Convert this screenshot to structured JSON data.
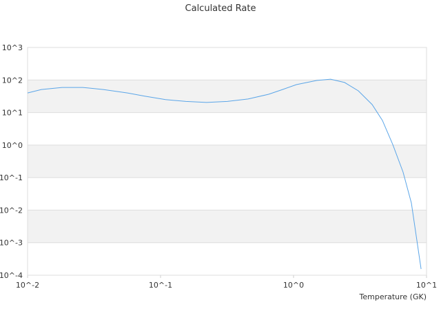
{
  "chart_data": {
    "type": "line",
    "title": "Calculated Rate",
    "x_label": "Temperature (GK)",
    "x_scale": "log",
    "y_scale": "log",
    "grid": true,
    "bands": true,
    "xlim": [
      0.01,
      10
    ],
    "ylim": [
      0.0001,
      1000
    ],
    "xticks": [
      {
        "value": 0.01,
        "label": "10^-2"
      },
      {
        "value": 0.1,
        "label": "10^-1"
      },
      {
        "value": 1,
        "label": "10^0"
      },
      {
        "value": 10,
        "label": "10^1"
      }
    ],
    "yticks": [
      {
        "value": 0.0001,
        "label": "10^-4"
      },
      {
        "value": 0.001,
        "label": "10^-3"
      },
      {
        "value": 0.01,
        "label": "10^-2"
      },
      {
        "value": 0.1,
        "label": "10^-1"
      },
      {
        "value": 1,
        "label": "10^0"
      },
      {
        "value": 10,
        "label": "10^1"
      },
      {
        "value": 100,
        "label": "10^2"
      },
      {
        "value": 1000,
        "label": "10^3"
      }
    ],
    "x": [
      0.01,
      0.0127,
      0.0182,
      0.026,
      0.0371,
      0.0564,
      0.076,
      0.109,
      0.155,
      0.222,
      0.318,
      0.455,
      0.65,
      0.826,
      1.05,
      1.5,
      1.9,
      2.42,
      3.07,
      3.9,
      4.66,
      5.57,
      6.66,
      7.69,
      9.1
    ],
    "series": [
      {
        "color": "#5aa5e8",
        "values": [
          40,
          51,
          59,
          59,
          51,
          40,
          32,
          25,
          22,
          20.4,
          22,
          26,
          36.5,
          51,
          72,
          97,
          106,
          84,
          46.6,
          17.6,
          5.7,
          1.04,
          0.149,
          0.0166,
          0.000155
        ]
      }
    ]
  }
}
